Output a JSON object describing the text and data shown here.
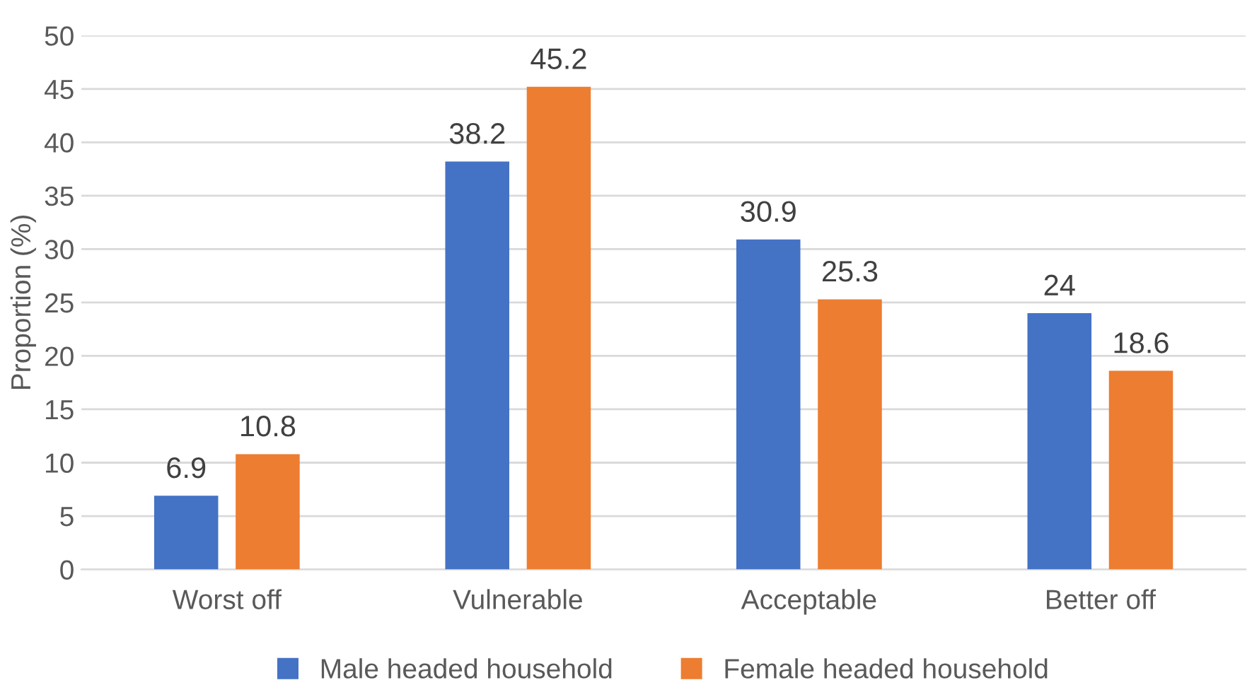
{
  "chart_data": {
    "type": "bar",
    "ylabel": "Proportion (%)",
    "categories": [
      "Worst off",
      "Vulnerable",
      "Acceptable",
      "Better off"
    ],
    "series": [
      {
        "name": "Male headed household",
        "color": "#4472c4",
        "values": [
          6.9,
          38.2,
          30.9,
          24
        ]
      },
      {
        "name": "Female headed household",
        "color": "#ed7d31",
        "values": [
          10.8,
          45.2,
          25.3,
          18.6
        ]
      }
    ],
    "ylim": [
      0,
      50
    ],
    "yticks": [
      0,
      5,
      10,
      15,
      20,
      25,
      30,
      35,
      40,
      45,
      50
    ],
    "grid": "y",
    "legend": "bottom",
    "data_labels": true
  }
}
